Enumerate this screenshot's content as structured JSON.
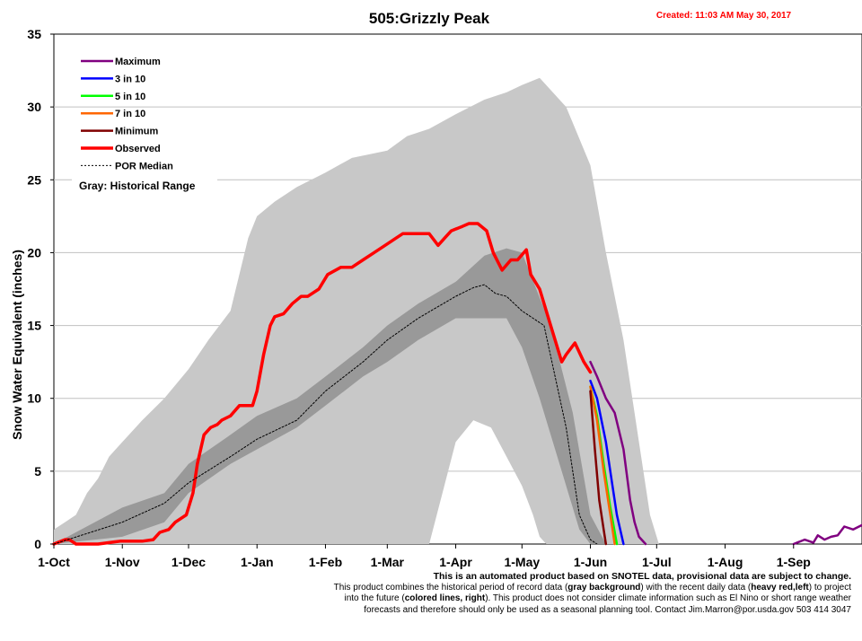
{
  "chart_data": {
    "type": "line",
    "title": "505:Grizzly Peak",
    "created": "Created: 11:03 AM May 30, 2017",
    "ylabel": "Snow Water Equivalent (inches)",
    "xlabel": "",
    "ylim": [
      0,
      35
    ],
    "y_ticks": [
      0,
      5,
      10,
      15,
      20,
      25,
      30,
      35
    ],
    "x_tick_labels": [
      "1-Oct",
      "1-Nov",
      "1-Dec",
      "1-Jan",
      "1-Feb",
      "1-Mar",
      "1-Apr",
      "1-May",
      "1-Jun",
      "1-Jul",
      "1-Aug",
      "1-Sep"
    ],
    "x_tick_days": [
      0,
      31,
      61,
      92,
      123,
      151,
      182,
      212,
      243,
      273,
      304,
      335
    ],
    "x_range_days": [
      0,
      366
    ],
    "grid": "horizontal",
    "legend_position": "top-left",
    "legend": [
      {
        "label": "Maximum",
        "color": "#800080",
        "style": "solid"
      },
      {
        "label": "3 in 10",
        "color": "#0000ff",
        "style": "solid"
      },
      {
        "label": "5 in 10",
        "color": "#00ff00",
        "style": "solid"
      },
      {
        "label": "7 in 10",
        "color": "#ff6600",
        "style": "solid"
      },
      {
        "label": "Minimum",
        "color": "#800000",
        "style": "solid"
      },
      {
        "label": "Observed",
        "color": "#ff0000",
        "style": "solid-heavy"
      },
      {
        "label": "POR Median",
        "color": "#000000",
        "style": "dotted"
      }
    ],
    "gray_note": "Gray: Historical Range",
    "historical_range_upper": {
      "x": [
        0,
        5,
        10,
        15,
        20,
        25,
        31,
        40,
        50,
        61,
        70,
        80,
        88,
        92,
        100,
        110,
        123,
        135,
        151,
        160,
        170,
        182,
        195,
        205,
        212,
        220,
        232,
        243,
        250,
        258,
        265,
        270,
        274
      ],
      "y": [
        1,
        1.5,
        2,
        3.5,
        4.5,
        6,
        7,
        8.5,
        10,
        12,
        14,
        16,
        21,
        22.5,
        23.5,
        24.5,
        25.5,
        26.5,
        27,
        28,
        28.5,
        29.5,
        30.5,
        31,
        31.5,
        32,
        30,
        26,
        20,
        14,
        7,
        2,
        0
      ]
    },
    "historical_range_lower": {
      "x": [
        0,
        90,
        110,
        130,
        151,
        170,
        182,
        190,
        198,
        205,
        212,
        217,
        220,
        223
      ],
      "y": [
        0,
        0,
        0,
        0,
        0,
        0,
        7,
        8.5,
        8,
        6,
        4,
        2,
        0.5,
        0
      ]
    },
    "interquartile_upper": {
      "x": [
        0,
        31,
        50,
        61,
        80,
        92,
        110,
        123,
        140,
        151,
        165,
        182,
        195,
        205,
        212,
        225,
        235,
        243,
        250
      ],
      "y": [
        0,
        2.5,
        3.5,
        5.5,
        7.5,
        8.8,
        10,
        11.5,
        13.5,
        15,
        16.5,
        18,
        19.8,
        20.3,
        20,
        15,
        9,
        2,
        0
      ]
    },
    "interquartile_lower": {
      "x": [
        0,
        31,
        50,
        61,
        80,
        92,
        110,
        123,
        140,
        151,
        165,
        182,
        195,
        205,
        212,
        220,
        230,
        238,
        243
      ],
      "y": [
        0,
        0.5,
        1.5,
        3.5,
        5.5,
        6.5,
        8,
        9.5,
        11.5,
        12.5,
        14,
        15.5,
        15.5,
        15.5,
        13.5,
        10,
        5,
        1,
        0
      ]
    },
    "series": [
      {
        "name": "Observed",
        "color": "#ff0000",
        "x": [
          0,
          5,
          7,
          10,
          15,
          20,
          30,
          40,
          45,
          48,
          52,
          55,
          60,
          63,
          65,
          68,
          71,
          74,
          76,
          80,
          84,
          90,
          92,
          95,
          98,
          100,
          104,
          108,
          112,
          115,
          120,
          124,
          130,
          135,
          140,
          145,
          150,
          155,
          158,
          162,
          170,
          174,
          177,
          180,
          185,
          188,
          192,
          196,
          199,
          203,
          207,
          210,
          214,
          216,
          220,
          225,
          230,
          232,
          236,
          240,
          243
        ],
        "y": [
          0,
          0.3,
          0.3,
          0,
          0,
          0,
          0.2,
          0.2,
          0.3,
          0.8,
          1,
          1.5,
          2,
          3.5,
          5.5,
          7.5,
          8,
          8.2,
          8.5,
          8.8,
          9.5,
          9.5,
          10.5,
          13,
          15,
          15.6,
          15.8,
          16.5,
          17,
          17,
          17.5,
          18.5,
          19,
          19,
          19.5,
          20,
          20.5,
          21,
          21.3,
          21.3,
          21.3,
          20.5,
          21,
          21.5,
          21.8,
          22,
          22,
          21.5,
          20,
          18.8,
          19.5,
          19.5,
          20.2,
          18.5,
          17.5,
          15,
          12.5,
          13,
          13.8,
          12.5,
          11.8
        ]
      },
      {
        "name": "POR Median",
        "color": "#000000",
        "x": [
          0,
          31,
          50,
          61,
          80,
          92,
          110,
          123,
          140,
          151,
          165,
          182,
          190,
          195,
          200,
          205,
          212,
          222,
          232,
          238,
          243,
          246
        ],
        "y": [
          0,
          1.5,
          2.8,
          4.2,
          6,
          7.2,
          8.5,
          10.5,
          12.5,
          14,
          15.5,
          17,
          17.6,
          17.8,
          17.2,
          17,
          16,
          15,
          8,
          2,
          0.3,
          0
        ]
      },
      {
        "name": "Maximum",
        "color": "#800080",
        "x": [
          243,
          246,
          250,
          254,
          258,
          261,
          263,
          265,
          268
        ],
        "y": [
          12.5,
          11.5,
          10,
          9,
          6.5,
          3,
          1.5,
          0.5,
          0
        ]
      },
      {
        "name": "3 in 10",
        "color": "#0000ff",
        "x": [
          243,
          246,
          250,
          253,
          255,
          258
        ],
        "y": [
          11.2,
          10,
          7,
          4,
          2,
          0
        ]
      },
      {
        "name": "5 in 10",
        "color": "#00ff00",
        "x": [
          243,
          246,
          249,
          252,
          255
        ],
        "y": [
          10.8,
          8.8,
          5.5,
          2.5,
          0
        ]
      },
      {
        "name": "7 in 10",
        "color": "#ff6600",
        "x": [
          243,
          246,
          249,
          252,
          254
        ],
        "y": [
          10.8,
          8.5,
          5,
          2,
          0
        ]
      },
      {
        "name": "Minimum",
        "color": "#800000",
        "x": [
          243,
          245,
          247,
          249,
          250
        ],
        "y": [
          10.5,
          6.5,
          3,
          1,
          0
        ]
      },
      {
        "name": "Maximum (late season)",
        "color": "#800080",
        "x": [
          335,
          340,
          344,
          346,
          349,
          352,
          355,
          358,
          362,
          366
        ],
        "y": [
          0,
          0.3,
          0.1,
          0.6,
          0.3,
          0.5,
          0.6,
          1.2,
          1.0,
          1.3
        ]
      }
    ]
  },
  "footer": {
    "headline": "This is an automated product based on SNOTEL data, provisional data are subject to change.",
    "line1_a": "This product combines the historical period of record data (",
    "line1_b": "gray background",
    "line1_c": ") with the recent daily data (",
    "line1_d": "heavy red,left",
    "line1_e": ") to project",
    "line2_a": "into the future (",
    "line2_b": "colored lines, right",
    "line2_c": "). This product does not consider climate information such as El Nino or short range weather",
    "line3": "forecasts and therefore should only be used as a seasonal planning tool. Contact Jim.Marron@por.usda.gov 503 414 3047"
  }
}
